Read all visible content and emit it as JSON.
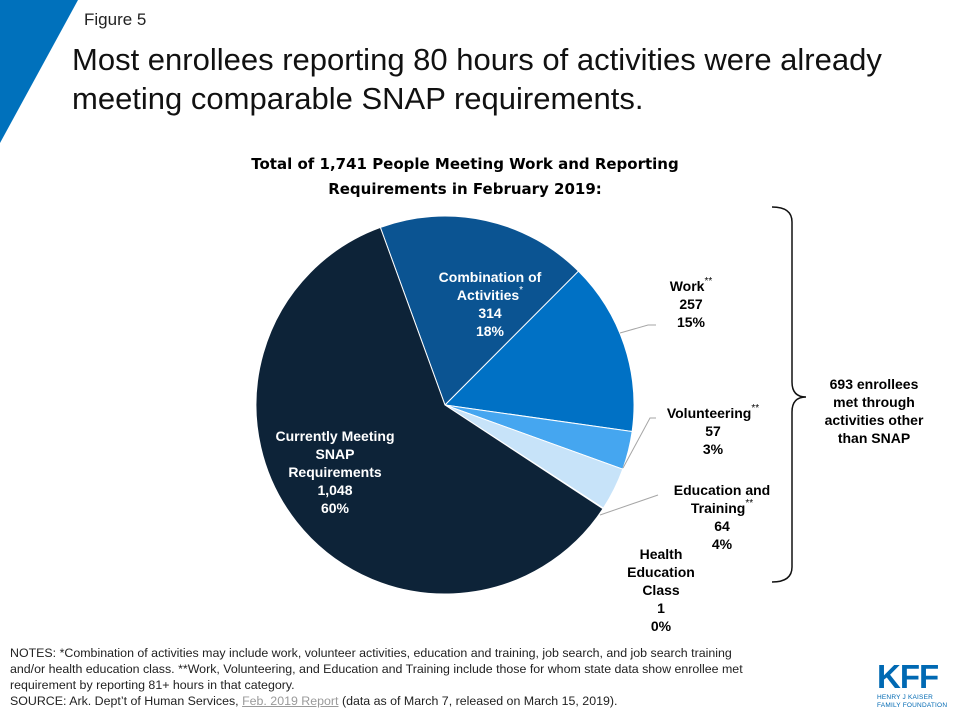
{
  "figure_label": "Figure 5",
  "title": "Most enrollees reporting 80 hours of activities were already meeting comparable SNAP requirements.",
  "colors": {
    "corner": "#0071bc",
    "snap": "#0d2338",
    "combination": "#0b5492",
    "work": "#0071c5",
    "volunteering": "#45a6f0",
    "education": "#c7e3f9",
    "health": "#dfeefb"
  },
  "chart_data": {
    "type": "pie",
    "title": "Total of 1,741 People Meeting Work and Reporting Requirements in February 2019:",
    "slices": [
      {
        "key": "combination",
        "name": "Combination of Activities",
        "mark": "*",
        "count": "314",
        "percent": "18%",
        "value": 314
      },
      {
        "key": "work",
        "name": "Work",
        "mark": "**",
        "count": "257",
        "percent": "15%",
        "value": 257
      },
      {
        "key": "volunteering",
        "name": "Volunteering",
        "mark": "**",
        "count": "57",
        "percent": "3%",
        "value": 57
      },
      {
        "key": "education",
        "name": "Education and Training",
        "mark": "**",
        "count": "64",
        "percent": "4%",
        "value": 64
      },
      {
        "key": "health",
        "name": "Health Education Class",
        "mark": "",
        "count": "1",
        "percent": "0%",
        "value": 1
      },
      {
        "key": "snap",
        "name": "Currently Meeting SNAP Requirements",
        "mark": "",
        "count": "1,048",
        "percent": "60%",
        "value": 1048
      }
    ],
    "bracket_annotation": "693 enrollees met through activities other than SNAP"
  },
  "labels": {
    "combination": {
      "line1": "Combination of",
      "line2": "Activities",
      "mark": "*",
      "count": "314",
      "percent": "18%"
    },
    "work": {
      "line1": "Work",
      "mark": "**",
      "count": "257",
      "percent": "15%"
    },
    "volunteering": {
      "line1": "Volunteering",
      "mark": "**",
      "count": "57",
      "percent": "3%"
    },
    "education": {
      "line1": "Education and",
      "line2": "Training",
      "mark": "**",
      "count": "64",
      "percent": "4%"
    },
    "health": {
      "line1": "Health",
      "line2": "Education",
      "line3": "Class",
      "count": "1",
      "percent": "0%"
    },
    "snap": {
      "line1": "Currently Meeting",
      "line2": "SNAP",
      "line3": "Requirements",
      "count": "1,048",
      "percent": "60%"
    }
  },
  "brace_note": {
    "line1": "693 enrollees",
    "line2": "met through",
    "line3": "activities other",
    "line4": "than SNAP"
  },
  "notes": {
    "line1": "NOTES:   *Combination of activities may include work, volunteer activities, education and training, job search, and job search training",
    "line2": "and/or health education class. **Work, Volunteering, and Education and Training include those for whom state data show enrollee met",
    "line3": "requirement by reporting 81+ hours in that category.",
    "source_prefix": "SOURCE:   Ark. Dept’t of Human Services, ",
    "source_link": "Feb. 2019 Report",
    "source_suffix": " (data as of March 7, released on March 15, 2019)."
  },
  "logo": {
    "mark": "KFF",
    "sub1": "HENRY J KAISER",
    "sub2": "FAMILY FOUNDATION"
  }
}
